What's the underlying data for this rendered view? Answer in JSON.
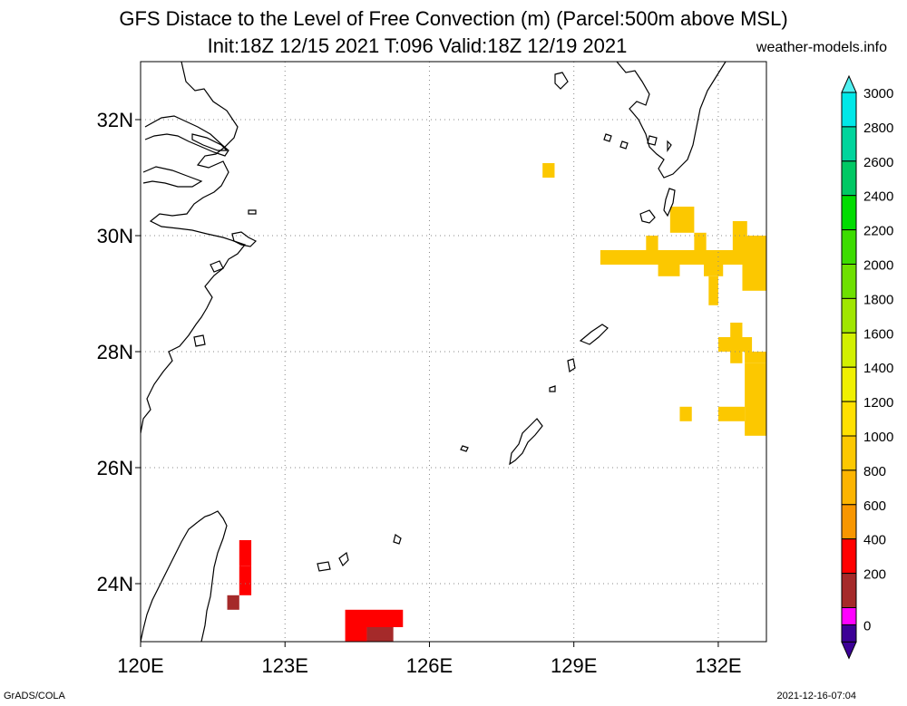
{
  "title": {
    "line1": "GFS Distace to the Level of Free Convection (m) (Parcel:500m above MSL)",
    "line2": "Init:18Z 12/15 2021 T:096 Valid:18Z 12/19 2021"
  },
  "site": "weather-models.info",
  "footer": {
    "left": "GrADS/COLA",
    "right": "2021-12-16-07:04"
  },
  "map": {
    "lon_range": [
      120,
      133
    ],
    "lat_range": [
      23,
      33
    ],
    "lon_ticks": [
      {
        "value": 120,
        "label": "120E"
      },
      {
        "value": 123,
        "label": "123E"
      },
      {
        "value": 126,
        "label": "126E"
      },
      {
        "value": 129,
        "label": "129E"
      },
      {
        "value": 132,
        "label": "132E"
      }
    ],
    "lat_ticks": [
      {
        "value": 24,
        "label": "24N"
      },
      {
        "value": 26,
        "label": "26N"
      },
      {
        "value": 28,
        "label": "28N"
      },
      {
        "value": 30,
        "label": "30N"
      },
      {
        "value": 32,
        "label": "32N"
      }
    ],
    "grid": true
  },
  "colorbar": {
    "levels": [
      {
        "value": 3000,
        "label": "3000",
        "color": "#00e8e8"
      },
      {
        "value": 2800,
        "label": "2800",
        "color": "#00d49c"
      },
      {
        "value": 2600,
        "label": "2600",
        "color": "#00c864"
      },
      {
        "value": 2400,
        "label": "2400",
        "color": "#00dc00"
      },
      {
        "value": 2200,
        "label": "2200",
        "color": "#3cdc00"
      },
      {
        "value": 2000,
        "label": "2000",
        "color": "#6ee000"
      },
      {
        "value": 1800,
        "label": "1800",
        "color": "#a0e600"
      },
      {
        "value": 1600,
        "label": "1600",
        "color": "#d2f000"
      },
      {
        "value": 1400,
        "label": "1400",
        "color": "#f0f000"
      },
      {
        "value": 1200,
        "label": "1200",
        "color": "#ffe000"
      },
      {
        "value": 1000,
        "label": "1000",
        "color": "#fcc800"
      },
      {
        "value": 800,
        "label": "800",
        "color": "#fcb400"
      },
      {
        "value": 600,
        "label": "600",
        "color": "#f89600"
      },
      {
        "value": 400,
        "label": "400",
        "color": "#ff0000"
      },
      {
        "value": 200,
        "label": "200",
        "color": "#a52a2a"
      },
      {
        "value": 0,
        "label": "0",
        "color": "#ff00ff"
      }
    ],
    "below_color": "#3c0096",
    "top_color": "#50f0f0"
  },
  "fields": [
    {
      "lon": [
        128.35,
        128.6
      ],
      "lat": [
        31.0,
        31.25
      ],
      "color": "#fcc800"
    },
    {
      "lon": [
        131.0,
        131.5
      ],
      "lat": [
        30.05,
        30.5
      ],
      "color": "#fcc800"
    },
    {
      "lon": [
        132.3,
        132.6
      ],
      "lat": [
        30.0,
        30.25
      ],
      "color": "#fcc800"
    },
    {
      "lon": [
        130.5,
        130.75
      ],
      "lat": [
        29.75,
        30.0
      ],
      "color": "#fcc800"
    },
    {
      "lon": [
        130.75,
        132.6
      ],
      "lat": [
        29.5,
        29.75
      ],
      "color": "#fcc800"
    },
    {
      "lon": [
        131.5,
        131.75
      ],
      "lat": [
        29.75,
        30.05
      ],
      "color": "#fcc800"
    },
    {
      "lon": [
        132.3,
        133.0
      ],
      "lat": [
        29.5,
        30.0
      ],
      "color": "#fcc800"
    },
    {
      "lon": [
        129.55,
        131.0
      ],
      "lat": [
        29.5,
        29.75
      ],
      "color": "#fcc800"
    },
    {
      "lon": [
        130.75,
        131.2
      ],
      "lat": [
        29.3,
        29.5
      ],
      "color": "#fcc800"
    },
    {
      "lon": [
        131.7,
        132.1
      ],
      "lat": [
        29.3,
        29.5
      ],
      "color": "#fcc800"
    },
    {
      "lon": [
        131.8,
        132.0
      ],
      "lat": [
        28.8,
        29.3
      ],
      "color": "#fcc800"
    },
    {
      "lon": [
        132.5,
        133.0
      ],
      "lat": [
        29.05,
        29.5
      ],
      "color": "#fcc800"
    },
    {
      "lon": [
        132.25,
        132.5
      ],
      "lat": [
        28.25,
        28.5
      ],
      "color": "#fcc800"
    },
    {
      "lon": [
        132.0,
        132.7
      ],
      "lat": [
        28.0,
        28.25
      ],
      "color": "#fcc800"
    },
    {
      "lon": [
        132.25,
        132.5
      ],
      "lat": [
        27.8,
        28.0
      ],
      "color": "#fcc800"
    },
    {
      "lon": [
        132.55,
        133.0
      ],
      "lat": [
        27.8,
        28.0
      ],
      "color": "#fcc800"
    },
    {
      "lon": [
        132.55,
        133.0
      ],
      "lat": [
        26.55,
        27.8
      ],
      "color": "#fcc800"
    },
    {
      "lon": [
        131.2,
        131.45
      ],
      "lat": [
        26.8,
        27.05
      ],
      "color": "#fcc800"
    },
    {
      "lon": [
        132.0,
        132.55
      ],
      "lat": [
        26.8,
        27.05
      ],
      "color": "#fcc800"
    },
    {
      "lon": [
        122.05,
        122.3
      ],
      "lat": [
        24.3,
        24.75
      ],
      "color": "#ff0000"
    },
    {
      "lon": [
        122.05,
        122.3
      ],
      "lat": [
        23.8,
        24.3
      ],
      "color": "#ff0000"
    },
    {
      "lon": [
        121.8,
        122.05
      ],
      "lat": [
        23.55,
        23.8
      ],
      "color": "#a52a2a"
    },
    {
      "lon": [
        124.25,
        125.45
      ],
      "lat": [
        23.25,
        23.55
      ],
      "color": "#ff0000"
    },
    {
      "lon": [
        124.25,
        124.7
      ],
      "lat": [
        23.0,
        23.25
      ],
      "color": "#ff0000"
    },
    {
      "lon": [
        124.7,
        125.25
      ],
      "lat": [
        23.0,
        23.25
      ],
      "color": "#a52a2a"
    }
  ]
}
